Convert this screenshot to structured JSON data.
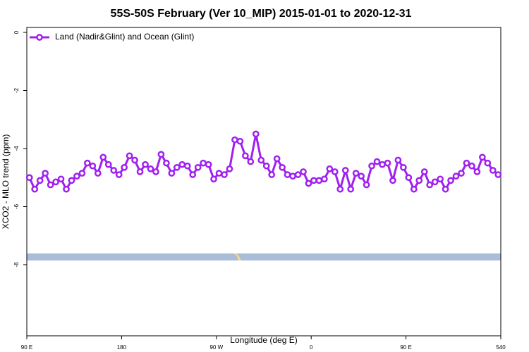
{
  "chart_data": {
    "type": "line",
    "title": "55S-50S February (Ver 10_MIP)   2015-01-01 to 2020-12-31",
    "x_label": "Longitude (deg E)",
    "y_label": "XCO2 - MLO trend (ppm)",
    "x": [
      92.5,
      97.5,
      102.5,
      107.5,
      112.5,
      117.5,
      122.5,
      127.5,
      132.5,
      137.5,
      142.5,
      147.5,
      152.5,
      157.5,
      162.5,
      167.5,
      172.5,
      177.5,
      182.5,
      187.5,
      192.5,
      197.5,
      202.5,
      207.5,
      212.5,
      217.5,
      222.5,
      227.5,
      232.5,
      237.5,
      242.5,
      247.5,
      252.5,
      257.5,
      262.5,
      267.5,
      272.5,
      277.5,
      282.5,
      287.5,
      292.5,
      297.5,
      302.5,
      307.5,
      312.5,
      317.5,
      322.5,
      327.5,
      332.5,
      337.5,
      342.5,
      347.5,
      352.5,
      357.5,
      362.5,
      367.5,
      372.5,
      377.5,
      382.5,
      387.5,
      392.5,
      397.5,
      402.5,
      407.5,
      412.5,
      417.5,
      422.5,
      427.5,
      432.5,
      437.5,
      442.5,
      447.5,
      452.5,
      457.5,
      462.5,
      467.5,
      472.5,
      477.5,
      482.5,
      487.5,
      492.5,
      497.5,
      502.5,
      507.5,
      512.5,
      517.5,
      522.5,
      527.5,
      532.5,
      537.5
    ],
    "series": [
      {
        "name": "Land (Nadir&Glint) and Ocean (Glint)",
        "color": "#a020f0",
        "values": [
          -5.0,
          -5.4,
          -5.1,
          -4.85,
          -5.25,
          -5.15,
          -5.05,
          -5.4,
          -5.1,
          -4.95,
          -4.85,
          -4.5,
          -4.6,
          -4.85,
          -4.3,
          -4.55,
          -4.75,
          -4.9,
          -4.65,
          -4.25,
          -4.4,
          -4.8,
          -4.55,
          -4.7,
          -4.8,
          -4.2,
          -4.5,
          -4.85,
          -4.65,
          -4.55,
          -4.6,
          -4.9,
          -4.65,
          -4.5,
          -4.55,
          -5.05,
          -4.85,
          -4.9,
          -4.7,
          -3.7,
          -3.75,
          -4.25,
          -4.45,
          -3.5,
          -4.4,
          -4.6,
          -4.9,
          -4.35,
          -4.65,
          -4.9,
          -4.95,
          -4.9,
          -4.8,
          -5.2,
          -5.1,
          -5.1,
          -5.05,
          -4.7,
          -4.8,
          -5.4,
          -4.75,
          -5.4,
          -4.85,
          -4.95,
          -5.25,
          -4.6,
          -4.45,
          -4.55,
          -4.5,
          -5.1,
          -4.4,
          -4.65,
          -5.0,
          -5.4,
          -5.1,
          -4.8,
          -5.25,
          -5.15,
          -5.05,
          -5.4,
          -5.1,
          -4.95,
          -4.85,
          -4.5,
          -4.6,
          -4.8,
          -4.3,
          -4.5,
          -4.75,
          -4.9
        ]
      }
    ],
    "xlim": [
      90,
      540
    ],
    "xticks": [
      {
        "value": 90,
        "label": "90 E"
      },
      180,
      {
        "value": 270,
        "label": "90 W"
      },
      {
        "value": 360,
        "label": "0"
      },
      {
        "value": 450,
        "label": "90 E"
      },
      540
    ],
    "ylim": [
      -10.45,
      0.17
    ],
    "yticks": [
      0,
      -2,
      -4,
      -6,
      -8
    ],
    "legend": "top-left"
  }
}
